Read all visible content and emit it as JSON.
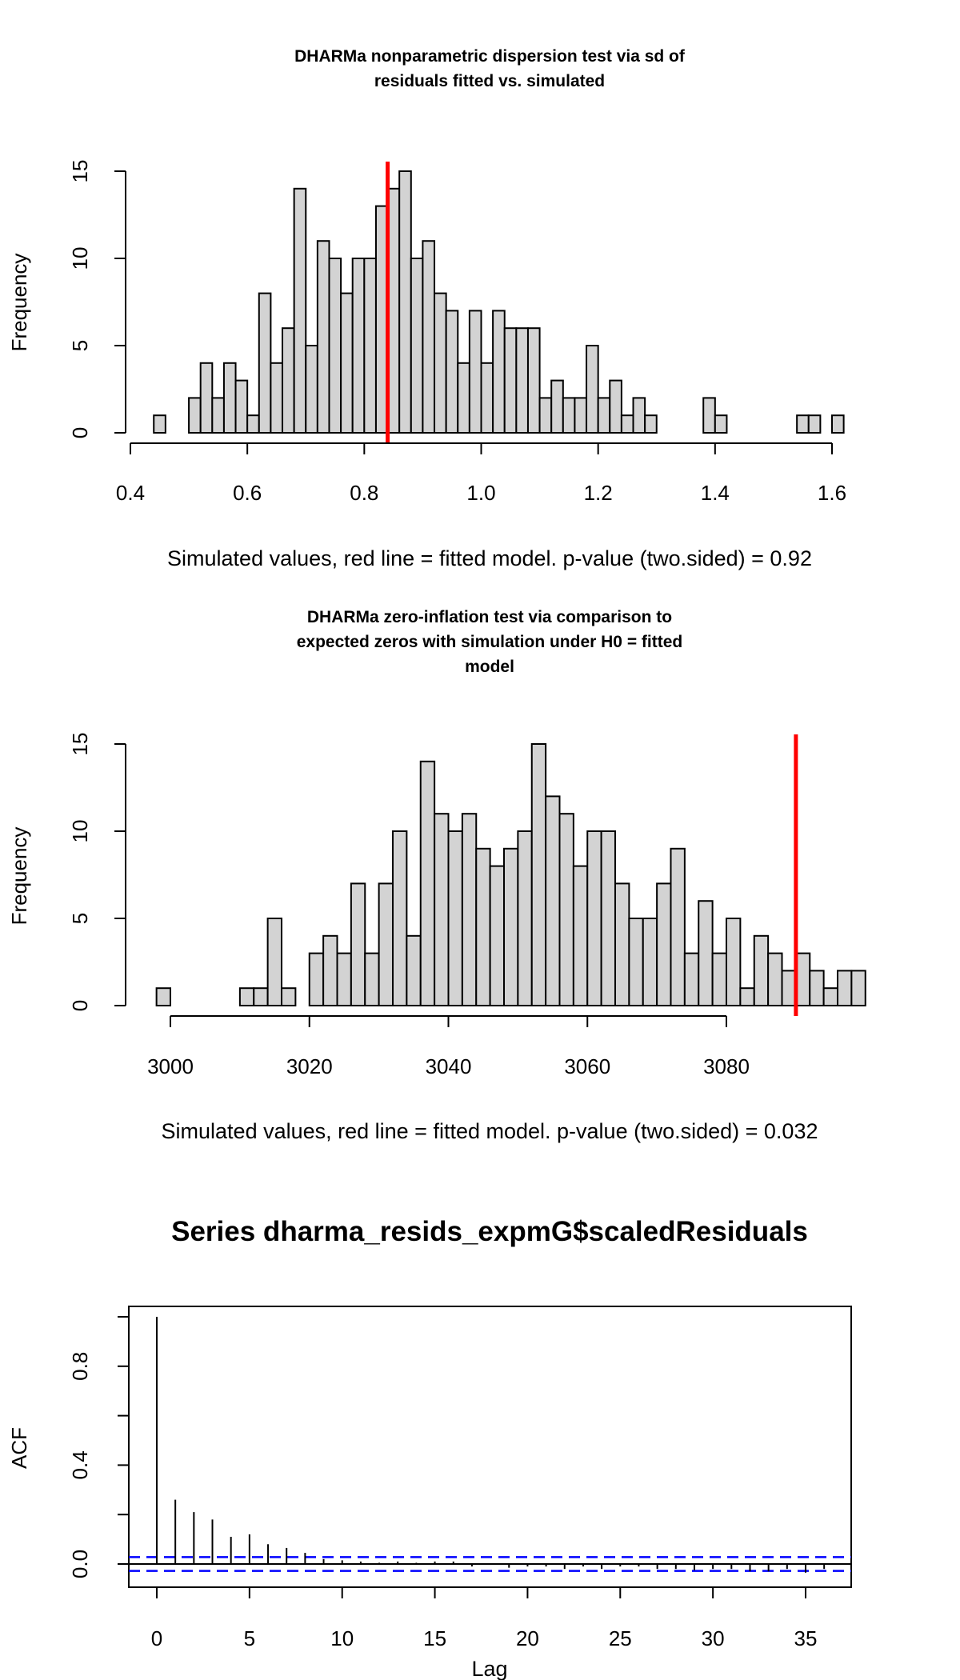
{
  "chart_data": [
    {
      "type": "bar",
      "title_lines": [
        "DHARMa nonparametric dispersion test via sd of",
        "residuals fitted vs. simulated"
      ],
      "xlabel": "Simulated values, red line = fitted model. p-value (two.sided) = 0.92",
      "ylabel": "Frequency",
      "xlim": [
        0.4,
        1.6
      ],
      "ylim": [
        0,
        15
      ],
      "x_ticks": [
        "0.4",
        "0.6",
        "0.8",
        "1.0",
        "1.2",
        "1.4",
        "1.6"
      ],
      "y_ticks": [
        "0",
        "5",
        "10",
        "15"
      ],
      "bin_width": 0.02,
      "bin_start": 0.44,
      "values": [
        1,
        0,
        0,
        2,
        4,
        2,
        4,
        3,
        1,
        8,
        4,
        6,
        14,
        5,
        11,
        10,
        8,
        10,
        10,
        13,
        14,
        15,
        10,
        11,
        8,
        7,
        4,
        7,
        4,
        7,
        6,
        6,
        6,
        2,
        3,
        2,
        2,
        5,
        2,
        3,
        1,
        2,
        1,
        0,
        0,
        0,
        0,
        2,
        1,
        0,
        0,
        0,
        0,
        0,
        0,
        1,
        1,
        0,
        1
      ],
      "fitted_value": 0.84,
      "bar_color": "#D3D3D3",
      "line_color": "#FF0000"
    },
    {
      "type": "bar",
      "title_lines": [
        "DHARMa zero-inflation test via comparison to",
        "expected zeros with simulation under H0 = fitted",
        "model"
      ],
      "xlabel": "Simulated values, red line = fitted model. p-value (two.sided) = 0.032",
      "ylabel": "Frequency",
      "xlim": [
        3000,
        3080
      ],
      "ylim": [
        0,
        15
      ],
      "x_ticks": [
        "3000",
        "3020",
        "3040",
        "3060",
        "3080"
      ],
      "y_ticks": [
        "0",
        "5",
        "10",
        "15"
      ],
      "bin_width": 2,
      "bin_start": 2998,
      "values": [
        1,
        0,
        0,
        0,
        0,
        0,
        1,
        1,
        5,
        1,
        0,
        3,
        4,
        3,
        7,
        3,
        7,
        10,
        4,
        14,
        11,
        10,
        11,
        9,
        8,
        9,
        10,
        15,
        12,
        11,
        8,
        10,
        10,
        7,
        5,
        5,
        7,
        9,
        3,
        6,
        3,
        5,
        1,
        4,
        3,
        2,
        3,
        2,
        1,
        2,
        2
      ],
      "fitted_value": 3090,
      "bar_color": "#D3D3D3",
      "line_color": "#FF0000"
    },
    {
      "type": "line",
      "title": "Series  dharma_resids_expmG$scaledResiduals",
      "xlabel": "Lag",
      "ylabel": "ACF",
      "xlim": [
        0,
        35
      ],
      "ylim": [
        0,
        1
      ],
      "x_ticks": [
        "0",
        "5",
        "10",
        "15",
        "20",
        "25",
        "30",
        "35"
      ],
      "y_ticks": [
        "0.0",
        "0.4",
        "0.8"
      ],
      "lags": [
        0,
        1,
        2,
        3,
        4,
        5,
        6,
        7,
        8,
        9,
        10,
        11,
        12,
        13,
        14,
        15,
        16,
        17,
        18,
        19,
        20,
        21,
        22,
        23,
        24,
        25,
        26,
        27,
        28,
        29,
        30,
        31,
        32,
        33,
        34,
        35,
        36
      ],
      "acf": [
        1.0,
        0.26,
        0.21,
        0.18,
        0.11,
        0.12,
        0.08,
        0.065,
        0.045,
        0.02,
        0.015,
        0.01,
        0.005,
        0.01,
        0.005,
        0.01,
        0.01,
        -0.01,
        0.0,
        -0.015,
        -0.01,
        -0.01,
        -0.02,
        -0.01,
        -0.02,
        -0.01,
        -0.01,
        -0.02,
        -0.02,
        -0.025,
        -0.02,
        -0.02,
        -0.03,
        -0.03,
        -0.02,
        -0.035,
        -0.02
      ],
      "ci": 0.028,
      "ci_color": "#0000FF"
    }
  ]
}
